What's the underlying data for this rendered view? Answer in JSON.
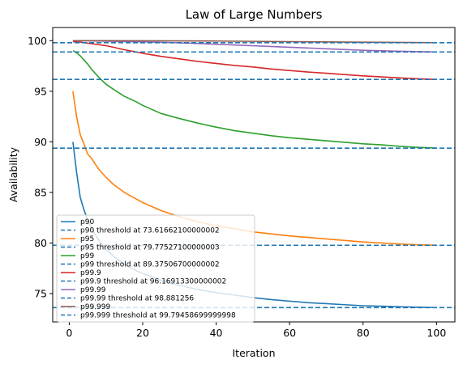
{
  "chart_data": {
    "type": "line",
    "title": "Law of Large Numbers",
    "xlabel": "Iteration",
    "ylabel": "Availability",
    "xlim": [
      -4.5,
      105
    ],
    "ylim": [
      72.2,
      101.3
    ],
    "xticks": [
      0,
      20,
      40,
      60,
      80,
      100
    ],
    "yticks": [
      75,
      80,
      85,
      90,
      95,
      100
    ],
    "legend_position": "lower-left",
    "grid": false,
    "series": [
      {
        "name": "p90",
        "color": "#1f77b4",
        "x": [
          1,
          2,
          3,
          4,
          5,
          6,
          8,
          10,
          12,
          15,
          18,
          20,
          25,
          30,
          35,
          40,
          45,
          50,
          55,
          60,
          65,
          70,
          75,
          80,
          85,
          90,
          95,
          100
        ],
        "y": [
          90.0,
          87.0,
          84.5,
          83.3,
          82.3,
          81.5,
          80.3,
          79.4,
          78.7,
          77.9,
          77.3,
          77.0,
          76.3,
          75.8,
          75.4,
          75.1,
          74.85,
          74.6,
          74.4,
          74.25,
          74.1,
          74.0,
          73.9,
          73.8,
          73.75,
          73.7,
          73.65,
          73.62
        ]
      },
      {
        "name": "p90 threshold at 73.61662100000002",
        "color": "#1f77b4",
        "dashed": true,
        "value": 73.616621
      },
      {
        "name": "p95",
        "color": "#ff7f0e",
        "x": [
          1,
          2,
          3,
          4,
          5,
          6,
          8,
          10,
          12,
          15,
          18,
          20,
          25,
          30,
          35,
          40,
          45,
          50,
          55,
          60,
          65,
          70,
          75,
          80,
          85,
          90,
          95,
          100
        ],
        "y": [
          95.0,
          92.5,
          90.7,
          89.8,
          88.8,
          88.4,
          87.3,
          86.5,
          85.8,
          85.0,
          84.4,
          84.0,
          83.2,
          82.6,
          82.1,
          81.7,
          81.4,
          81.1,
          80.9,
          80.7,
          80.55,
          80.4,
          80.25,
          80.1,
          80.0,
          79.9,
          79.82,
          79.78
        ]
      },
      {
        "name": "p95 threshold at 79.77527100000003",
        "color": "#1f77b4",
        "dashed": true,
        "value": 79.775271
      },
      {
        "name": "p99",
        "color": "#2ca02c",
        "x": [
          1,
          2,
          3,
          4,
          5,
          6,
          8,
          10,
          12,
          15,
          18,
          20,
          25,
          30,
          35,
          40,
          45,
          50,
          55,
          60,
          65,
          70,
          75,
          80,
          85,
          90,
          95,
          100
        ],
        "y": [
          99.0,
          98.8,
          98.5,
          98.1,
          97.7,
          97.2,
          96.4,
          95.7,
          95.2,
          94.5,
          94.0,
          93.6,
          92.8,
          92.3,
          91.85,
          91.45,
          91.1,
          90.85,
          90.6,
          90.4,
          90.25,
          90.1,
          89.95,
          89.8,
          89.7,
          89.55,
          89.45,
          89.38
        ]
      },
      {
        "name": "p99 threshold at 89.37506700000002",
        "color": "#1f77b4",
        "dashed": true,
        "value": 89.375067
      },
      {
        "name": "p99.9",
        "color": "#d62728",
        "x": [
          1,
          2,
          3,
          4,
          5,
          6,
          8,
          10,
          12,
          15,
          18,
          20,
          25,
          30,
          35,
          40,
          45,
          50,
          55,
          60,
          65,
          70,
          75,
          80,
          85,
          90,
          95,
          100
        ],
        "y": [
          99.9,
          99.88,
          99.85,
          99.8,
          99.75,
          99.7,
          99.6,
          99.5,
          99.35,
          99.1,
          98.9,
          98.75,
          98.45,
          98.2,
          97.95,
          97.75,
          97.55,
          97.4,
          97.2,
          97.05,
          96.9,
          96.78,
          96.65,
          96.52,
          96.42,
          96.32,
          96.23,
          96.17
        ]
      },
      {
        "name": "p99.9 threshold at 96.16913300000002",
        "color": "#1f77b4",
        "dashed": true,
        "value": 96.169133
      },
      {
        "name": "p99.99",
        "color": "#9467bd",
        "x": [
          1,
          5,
          10,
          20,
          30,
          40,
          50,
          60,
          70,
          80,
          90,
          100
        ],
        "y": [
          99.99,
          99.98,
          99.95,
          99.88,
          99.78,
          99.65,
          99.5,
          99.35,
          99.2,
          99.05,
          98.95,
          98.88
        ]
      },
      {
        "name": "p99.99 threshold at 98.881256",
        "color": "#1f77b4",
        "dashed": true,
        "value": 98.881256
      },
      {
        "name": "p99.999",
        "color": "#8c564b",
        "x": [
          1,
          20,
          40,
          60,
          80,
          100
        ],
        "y": [
          99.999,
          99.99,
          99.96,
          99.9,
          99.85,
          99.8
        ]
      },
      {
        "name": "p99.999 threshold at 99.79458699999998",
        "color": "#1f77b4",
        "dashed": true,
        "value": 99.794587
      }
    ]
  }
}
